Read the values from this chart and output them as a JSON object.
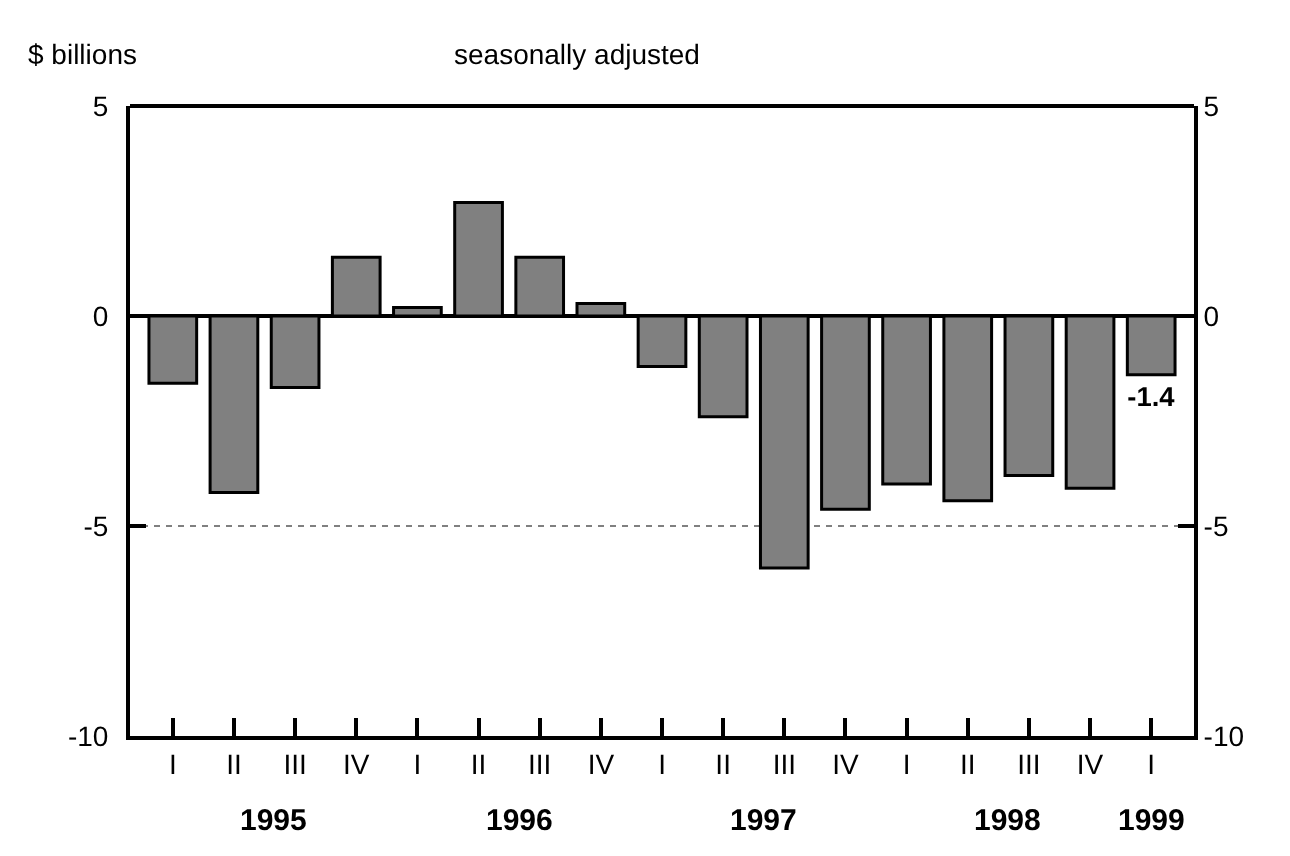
{
  "chart_data": {
    "type": "bar",
    "ylabel": "$ billions",
    "subtitle": "seasonally adjusted",
    "categories": [
      "I",
      "II",
      "III",
      "IV",
      "I",
      "II",
      "III",
      "IV",
      "I",
      "II",
      "III",
      "IV",
      "I",
      "II",
      "III",
      "IV",
      "I"
    ],
    "values": [
      -1.6,
      -4.2,
      -1.7,
      1.4,
      0.2,
      2.7,
      1.4,
      0.3,
      -1.2,
      -2.4,
      -6.0,
      -4.6,
      -4.0,
      -4.4,
      -3.8,
      -4.1,
      -1.4
    ],
    "value_labels": [
      null,
      null,
      null,
      null,
      null,
      null,
      null,
      null,
      null,
      null,
      null,
      null,
      null,
      null,
      null,
      null,
      "-1.4"
    ],
    "color": "#808080",
    "ylim": [
      -10,
      5
    ],
    "yticks": [
      -10,
      -5,
      0,
      5
    ],
    "y2lim": [
      -10,
      5
    ],
    "y2ticks": [
      -10,
      -5,
      0,
      5
    ],
    "ref_lines": [
      {
        "axis": "y",
        "value": -5,
        "line_style": "dotted",
        "color": "#808080"
      }
    ],
    "annotations": [
      "1995",
      "1996",
      "1997",
      "1998",
      "1999"
    ],
    "grid": false
  }
}
